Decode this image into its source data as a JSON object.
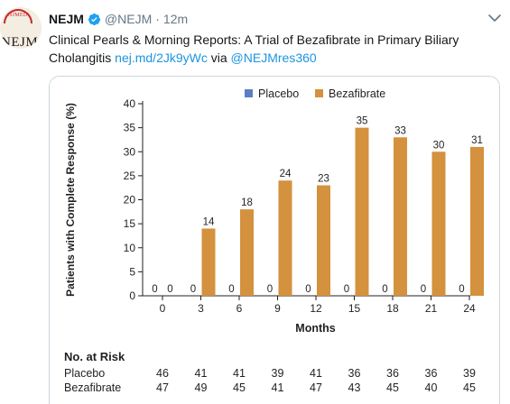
{
  "tweet": {
    "author_name": "NEJM",
    "handle": "@NEJM",
    "separator": "·",
    "time": "12m",
    "avatar_arc_text": "NJMED",
    "avatar_word": "NEJM",
    "text_plain": "Clinical Pearls & Morning Reports: A Trial of Bezafibrate in Primary Biliary Cholangitis",
    "link_1": "nej.md/2Jk9yWc",
    "via": "via",
    "link_2": "@NEJMres360"
  },
  "colors": {
    "placebo": "#5b7fc4",
    "bezafibrate": "#d4913e",
    "link": "#1b95e0",
    "verified": "#1da1f2"
  },
  "chart_data": {
    "type": "bar",
    "ylabel": "Patients with Complete Response (%)",
    "xlabel": "Months",
    "ylim": [
      0,
      40
    ],
    "yticks": [
      0,
      5,
      10,
      15,
      20,
      25,
      30,
      35,
      40
    ],
    "categories": [
      "0",
      "3",
      "6",
      "9",
      "12",
      "15",
      "18",
      "21",
      "24"
    ],
    "legend_position": "top",
    "series": [
      {
        "name": "Placebo",
        "color": "#5b7fc4",
        "values": [
          0,
          0,
          0,
          0,
          0,
          0,
          0,
          0,
          0
        ]
      },
      {
        "name": "Bezafibrate",
        "color": "#d4913e",
        "values": [
          0,
          14,
          18,
          24,
          23,
          35,
          33,
          30,
          31
        ]
      }
    ]
  },
  "at_risk": {
    "title": "No. at Risk",
    "rows": [
      {
        "label": "Placebo",
        "values": [
          "46",
          "41",
          "41",
          "39",
          "41",
          "36",
          "36",
          "36",
          "39"
        ]
      },
      {
        "label": "Bezafibrate",
        "values": [
          "47",
          "49",
          "45",
          "41",
          "47",
          "43",
          "45",
          "40",
          "45"
        ]
      }
    ]
  }
}
